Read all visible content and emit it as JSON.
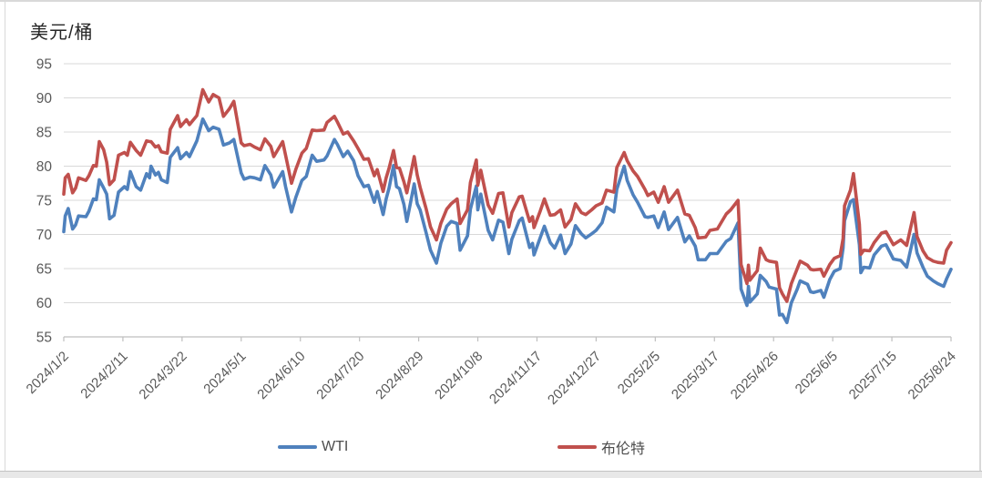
{
  "page": {
    "unit_label": "美元/桶"
  },
  "chart_data": {
    "type": "line",
    "title": "美元/桶",
    "ylabel": "美元/桶",
    "xlabel": "",
    "grid": true,
    "legend_position": "bottom",
    "ylim": [
      55,
      95
    ],
    "y_ticks": [
      55,
      60,
      65,
      70,
      75,
      80,
      85,
      90,
      95
    ],
    "x_total_days": 600,
    "x_tick_days": [
      0,
      40,
      80,
      120,
      160,
      200,
      240,
      280,
      320,
      360,
      400,
      440,
      480,
      520,
      560,
      600
    ],
    "x_tick_labels": [
      "2024/1/2",
      "2024/2/11",
      "2024/3/22",
      "2024/5/1",
      "2024/6/10",
      "2024/7/20",
      "2024/8/29",
      "2024/10/8",
      "2024/11/17",
      "2024/12/27",
      "2025/2/5",
      "2025/3/17",
      "2025/4/26",
      "2025/6/5",
      "2025/7/15",
      "2025/8/24"
    ],
    "axis_color": "#bfbfbf",
    "grid_color": "#d9d9d9",
    "label_color": "#595959",
    "days": [
      0,
      1,
      3,
      6,
      8,
      10,
      15,
      17,
      20,
      22,
      24,
      27,
      29,
      31,
      34,
      37,
      41,
      43,
      45,
      49,
      52,
      56,
      58,
      59,
      62,
      64,
      66,
      70,
      72,
      77,
      79,
      83,
      85,
      90,
      94,
      98,
      101,
      105,
      108,
      112,
      115,
      120,
      122,
      126,
      129,
      133,
      136,
      140,
      142,
      148,
      150,
      154,
      157,
      161,
      164,
      168,
      171,
      176,
      178,
      183,
      185,
      189,
      192,
      196,
      199,
      203,
      206,
      210,
      212,
      216,
      218,
      220,
      223,
      225,
      227,
      230,
      232,
      237,
      239,
      241,
      245,
      248,
      252,
      255,
      259,
      262,
      266,
      268,
      273,
      275,
      279,
      280,
      282,
      287,
      290,
      294,
      297,
      301,
      303,
      308,
      310,
      315,
      317,
      318,
      322,
      325,
      329,
      332,
      336,
      339,
      343,
      346,
      350,
      353,
      357,
      360,
      364,
      367,
      372,
      374,
      379,
      381,
      385,
      388,
      393,
      395,
      399,
      402,
      406,
      409,
      415,
      420,
      423,
      427,
      429,
      434,
      437,
      442,
      448,
      451,
      456,
      458,
      462,
      463,
      464,
      469,
      471,
      475,
      477,
      482,
      484,
      486,
      489,
      492,
      496,
      498,
      503,
      505,
      507,
      512,
      514,
      518,
      521,
      525,
      527,
      528,
      532,
      534,
      538,
      539,
      541,
      545,
      548,
      553,
      556,
      561,
      566,
      570,
      575,
      577,
      581,
      584,
      588,
      591,
      595,
      597,
      600
    ],
    "series": [
      {
        "name": "WTI",
        "color": "#4F81BD",
        "values": [
          70.4,
          72.7,
          73.8,
          70.8,
          71.4,
          72.7,
          72.6,
          73.4,
          75.2,
          75.1,
          78.0,
          76.8,
          75.9,
          72.3,
          72.8,
          76.2,
          77.0,
          76.6,
          79.2,
          77.0,
          76.5,
          78.9,
          78.3,
          80.0,
          78.7,
          79.1,
          78.0,
          77.6,
          81.3,
          82.7,
          81.1,
          82.0,
          81.4,
          83.7,
          86.9,
          85.2,
          85.7,
          85.4,
          83.1,
          83.4,
          83.9,
          79.0,
          78.1,
          78.4,
          78.3,
          78.0,
          80.1,
          78.7,
          76.9,
          79.2,
          77.0,
          73.3,
          75.5,
          77.9,
          78.5,
          81.6,
          80.7,
          80.9,
          81.5,
          83.9,
          83.2,
          81.4,
          82.2,
          80.8,
          78.6,
          77.0,
          77.2,
          74.7,
          76.3,
          72.9,
          75.2,
          76.8,
          80.1,
          77.0,
          76.7,
          74.4,
          71.9,
          77.4,
          74.5,
          73.6,
          70.3,
          67.7,
          65.8,
          68.7,
          71.2,
          71.9,
          71.6,
          67.7,
          69.8,
          73.7,
          77.1,
          73.6,
          75.9,
          70.6,
          69.2,
          72.1,
          71.8,
          67.2,
          69.3,
          72.0,
          72.4,
          68.1,
          68.7,
          67.0,
          69.4,
          71.2,
          68.8,
          68.0,
          69.9,
          67.2,
          68.6,
          71.3,
          70.1,
          69.5,
          70.1,
          70.6,
          71.7,
          74.0,
          73.3,
          76.6,
          80.0,
          77.9,
          75.8,
          74.7,
          72.6,
          72.5,
          72.7,
          71.0,
          73.3,
          70.7,
          72.5,
          68.9,
          69.8,
          68.3,
          66.3,
          66.3,
          67.2,
          67.2,
          69.0,
          69.4,
          71.7,
          62.0,
          59.6,
          62.4,
          60.1,
          61.3,
          64.0,
          63.1,
          62.3,
          62.0,
          58.2,
          58.3,
          57.1,
          60.0,
          62.0,
          63.2,
          62.7,
          61.6,
          61.5,
          61.8,
          60.8,
          63.4,
          64.6,
          65.0,
          68.0,
          72.0,
          74.8,
          75.1,
          68.5,
          64.4,
          65.2,
          65.1,
          67.0,
          68.3,
          68.5,
          66.4,
          66.2,
          65.2,
          70.0,
          67.3,
          65.2,
          63.9,
          63.2,
          62.8,
          62.4,
          63.5,
          64.9
        ]
      },
      {
        "name": "布伦特",
        "color": "#C0504D",
        "values": [
          75.9,
          78.3,
          78.8,
          76.1,
          76.8,
          78.3,
          77.9,
          78.6,
          80.1,
          80.0,
          83.6,
          82.4,
          80.6,
          77.3,
          78.0,
          81.6,
          82.0,
          81.6,
          83.5,
          82.3,
          81.6,
          83.7,
          83.6,
          83.6,
          82.8,
          83.0,
          82.1,
          81.9,
          85.4,
          87.4,
          85.8,
          86.8,
          86.1,
          87.4,
          91.2,
          89.4,
          90.5,
          90.0,
          87.3,
          88.4,
          89.5,
          83.4,
          83.0,
          83.2,
          82.8,
          82.4,
          84.0,
          82.9,
          81.4,
          83.6,
          81.6,
          77.5,
          79.6,
          81.9,
          82.6,
          85.3,
          85.2,
          85.3,
          86.4,
          87.3,
          86.5,
          84.7,
          85.0,
          83.7,
          82.6,
          81.0,
          81.1,
          78.6,
          79.5,
          76.3,
          78.3,
          79.7,
          82.3,
          79.8,
          79.7,
          77.7,
          76.1,
          81.4,
          78.7,
          76.9,
          73.8,
          71.1,
          69.2,
          71.6,
          73.7,
          74.5,
          75.2,
          71.6,
          73.6,
          77.6,
          80.9,
          77.2,
          79.4,
          74.3,
          73.1,
          76.0,
          76.1,
          71.1,
          73.2,
          75.5,
          75.6,
          71.9,
          72.6,
          71.0,
          73.3,
          75.2,
          72.8,
          72.9,
          73.6,
          71.1,
          72.2,
          74.5,
          73.2,
          72.9,
          73.6,
          74.2,
          74.6,
          76.5,
          76.2,
          79.8,
          82.0,
          80.8,
          79.3,
          78.5,
          76.6,
          75.7,
          76.2,
          74.7,
          77.0,
          74.7,
          76.5,
          73.0,
          72.8,
          71.0,
          69.5,
          69.6,
          70.6,
          70.8,
          73.0,
          73.6,
          75.0,
          65.6,
          62.8,
          65.5,
          63.3,
          64.7,
          68.0,
          66.3,
          66.1,
          65.9,
          62.2,
          61.3,
          60.2,
          62.8,
          65.0,
          66.1,
          65.5,
          64.9,
          64.8,
          64.9,
          63.9,
          65.6,
          66.5,
          66.9,
          69.4,
          74.2,
          76.5,
          78.9,
          71.5,
          67.1,
          67.7,
          67.6,
          68.8,
          70.2,
          70.4,
          68.5,
          69.2,
          68.4,
          73.2,
          69.7,
          67.6,
          66.6,
          66.1,
          65.9,
          65.8,
          67.7,
          68.8
        ]
      }
    ]
  },
  "legend": {
    "items": [
      {
        "label": "WTI",
        "color": "#4F81BD"
      },
      {
        "label": "布伦特",
        "color": "#C0504D"
      }
    ]
  }
}
